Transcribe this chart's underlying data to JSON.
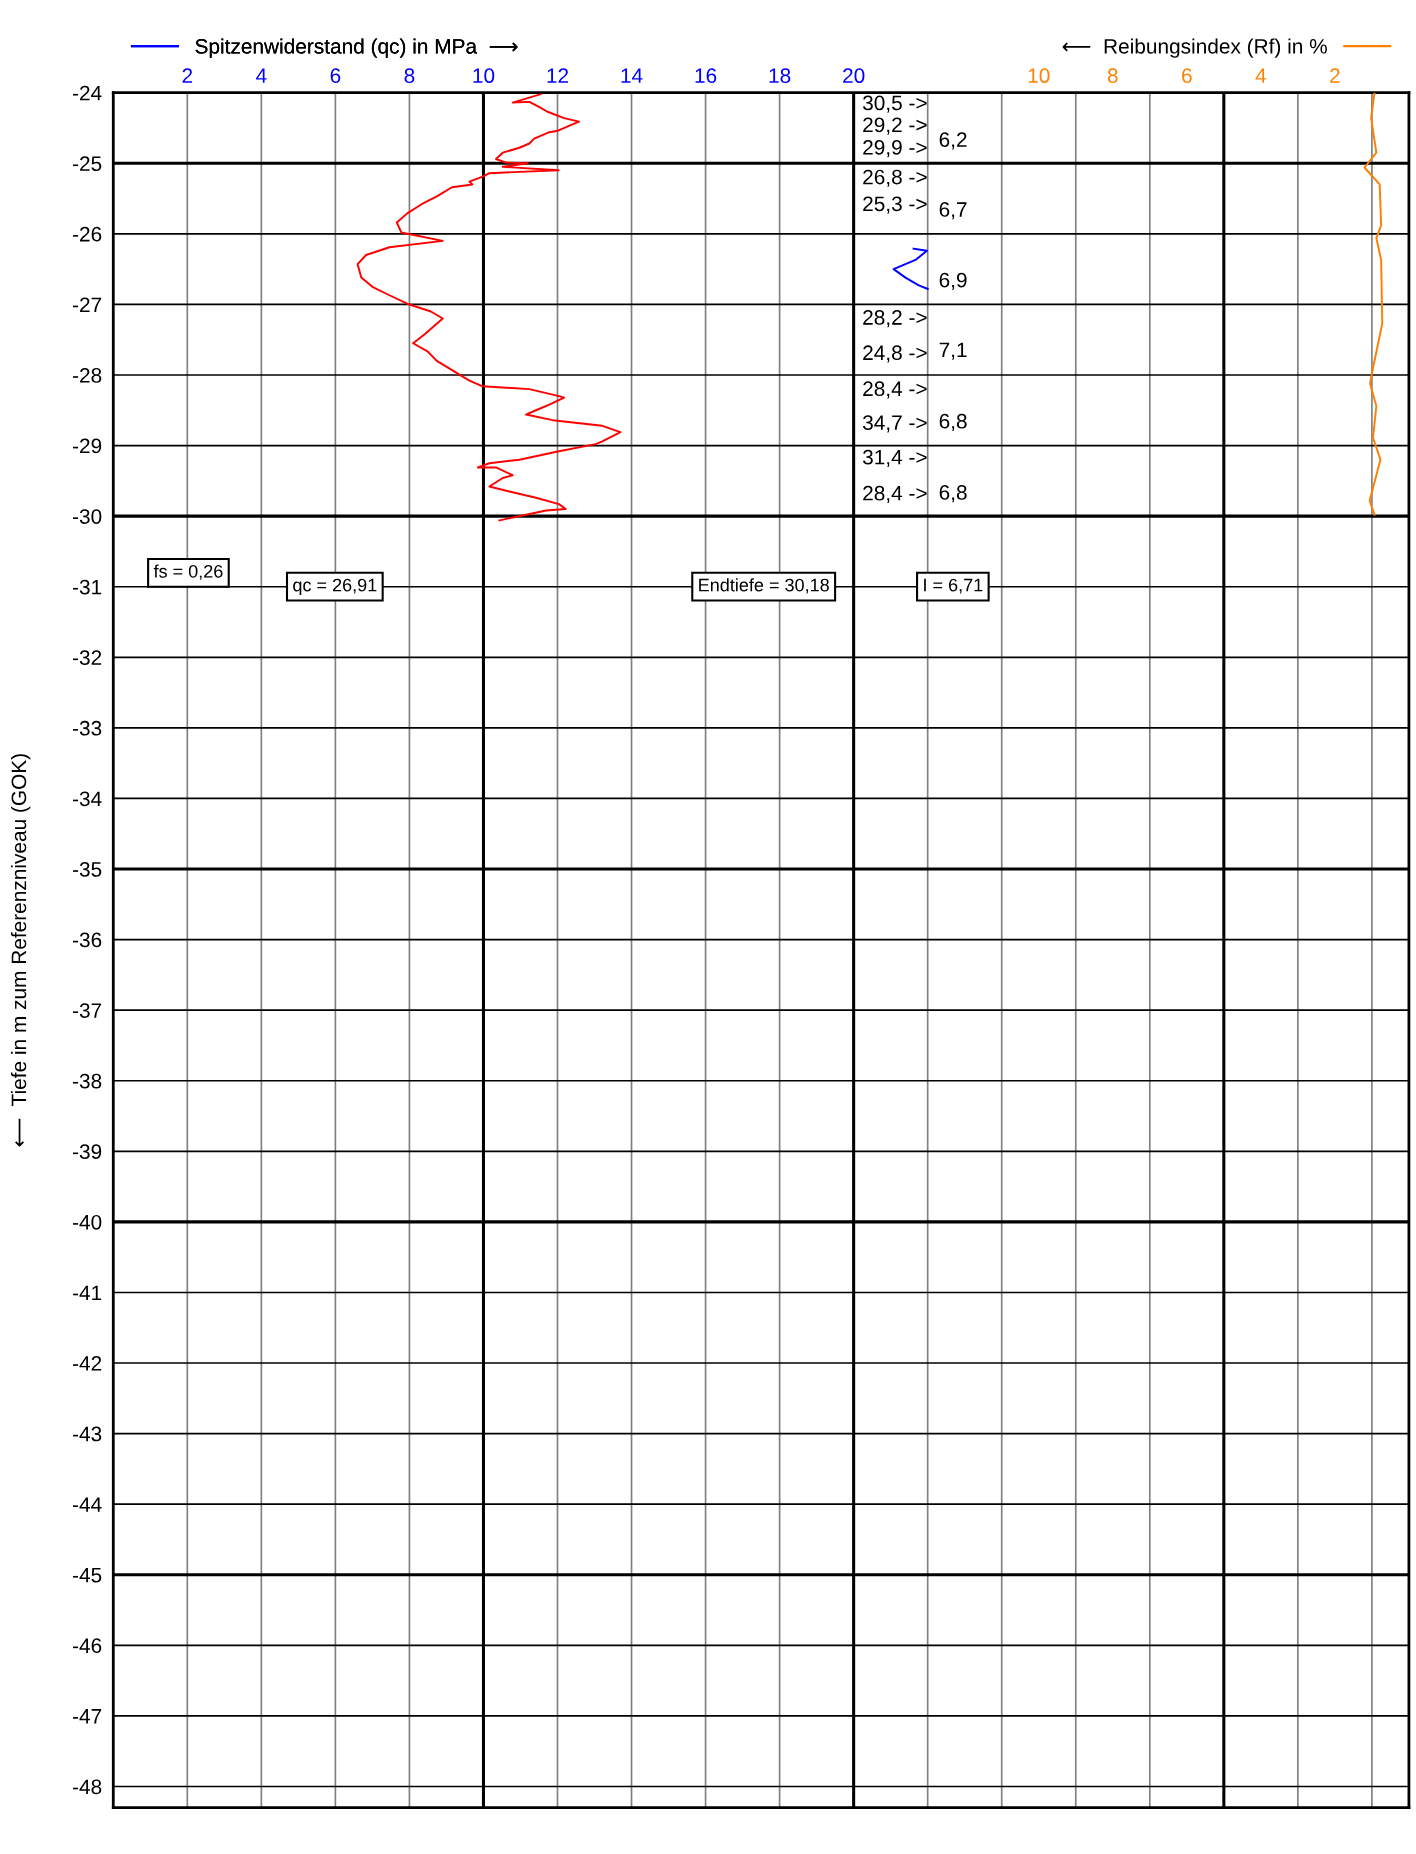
{
  "chart_data": {
    "type": "line",
    "xlim": [
      0,
      35
    ],
    "xticks": [
      2,
      4,
      6,
      8,
      10,
      12,
      14,
      16,
      18,
      20,
      {
        "value": 22,
        "label": null
      },
      {
        "value": 24,
        "label": null
      },
      {
        "value": 26,
        "label": null
      },
      {
        "value": 28,
        "label": null
      },
      {
        "value": 30,
        "label": null
      },
      {
        "value": 32,
        "label": null
      },
      {
        "value": 34,
        "label": null
      }
    ],
    "x2lim": [
      35,
      0
    ],
    "x2ticks": [
      10,
      8,
      6,
      4,
      2
    ],
    "ylim": [
      -48.3,
      -24
    ],
    "yticks": [
      -24,
      -25,
      -26,
      -27,
      -28,
      -29,
      -30,
      -31,
      -32,
      -33,
      -34,
      -35,
      -36,
      -37,
      -38,
      -39,
      -40,
      -41,
      -42,
      -43,
      -44,
      -45,
      -46,
      -47,
      -48
    ],
    "ylabel": "⟵  Tiefe in m zum Referenzniveau (GOK)",
    "grid": true,
    "legend": "top",
    "line_style": "solid",
    "marker": "none",
    "series": [
      {
        "color": "#ff0000",
        "x": [
          11.55,
          10.79,
          11.24,
          11.5,
          11.73,
          12.18,
          12.58,
          12.31,
          12.0,
          11.78,
          11.37,
          11.24,
          10.97,
          10.52,
          10.34,
          10.61,
          11.2,
          10.52,
          12.03,
          10.16,
          9.98,
          9.62,
          9.7,
          9.15,
          8.74,
          8.33,
          7.94,
          7.66,
          7.78,
          8.9,
          7.46,
          6.83,
          6.6,
          6.7,
          7.0,
          7.46,
          7.94,
          8.58,
          8.9,
          8.42,
          8.1,
          8.5,
          8.74,
          9.62,
          9.98,
          11.24,
          12.04,
          12.18,
          11.78,
          11.37,
          11.15,
          11.87,
          13.21,
          13.7,
          13.21,
          13.03,
          12.04,
          10.97,
          10.16,
          9.85,
          10.34,
          10.79,
          10.52,
          10.16,
          10.7,
          11.42,
          12.04,
          12.22,
          11.69,
          11.06,
          10.43
        ],
        "values": [
          -24.02,
          -24.14,
          -24.13,
          -24.2,
          -24.27,
          -24.36,
          -24.41,
          -24.47,
          -24.54,
          -24.56,
          -24.65,
          -24.72,
          -24.78,
          -24.85,
          -24.94,
          -24.99,
          -25.0,
          -25.05,
          -25.1,
          -25.14,
          -25.19,
          -25.26,
          -25.3,
          -25.34,
          -25.47,
          -25.58,
          -25.71,
          -25.84,
          -25.98,
          -26.1,
          -26.19,
          -26.3,
          -26.43,
          -26.62,
          -26.75,
          -26.87,
          -26.99,
          -27.1,
          -27.2,
          -27.42,
          -27.55,
          -27.67,
          -27.8,
          -28.08,
          -28.16,
          -28.2,
          -28.3,
          -28.32,
          -28.42,
          -28.51,
          -28.56,
          -28.64,
          -28.72,
          -28.81,
          -28.94,
          -28.98,
          -29.08,
          -29.2,
          -29.25,
          -29.31,
          -29.31,
          -29.42,
          -29.46,
          -29.58,
          -29.65,
          -29.74,
          -29.83,
          -29.9,
          -29.92,
          -29.99,
          -30.06
        ]
      },
      {
        "name": "Spitzenwiderstand (qc) in MPa  ⟶",
        "color": "#0000ff",
        "x": [
          21.62,
          21.98,
          21.67,
          21.08,
          21.4,
          21.76,
          22.0
        ],
        "values": [
          -26.21,
          -26.24,
          -26.37,
          -26.5,
          -26.62,
          -26.73,
          -26.78
        ]
      },
      {
        "name": "⟵  Reibungsindex (Rf) in %",
        "color": "#ff8000",
        "axis": "x2",
        "x": [
          0.93,
          1.02,
          0.88,
          1.2,
          0.79,
          0.75,
          0.88,
          0.75,
          0.72,
          0.97,
          1.05,
          0.88,
          0.97,
          0.77,
          1.06,
          0.93
        ],
        "values": [
          -24.0,
          -24.36,
          -24.85,
          -25.06,
          -25.3,
          -25.88,
          -26.06,
          -26.37,
          -27.27,
          -27.9,
          -28.12,
          -28.44,
          -28.89,
          -29.2,
          -29.78,
          -29.98
        ]
      }
    ],
    "annotations": [
      "30,5 ->",
      "29,2 ->",
      "29,9 ->",
      "26,8 ->",
      "25,3 ->",
      "28,2 ->",
      "24,8 ->",
      "28,4 ->",
      "34,7 ->",
      "31,4 ->",
      "28,4 ->",
      "6,2",
      "6,7",
      "6,9",
      "7,1",
      "6,8",
      "6,8",
      "fs = 0,26",
      "qc = 26,91",
      "Endtiefe = 30,18",
      "I = 6,71"
    ]
  }
}
